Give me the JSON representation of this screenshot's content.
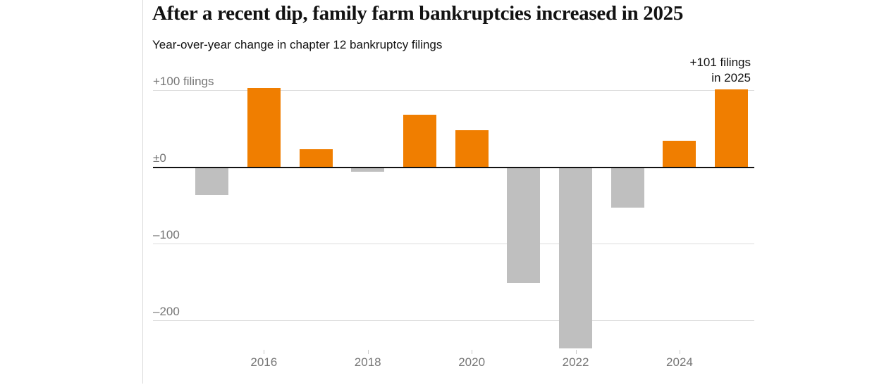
{
  "header": {
    "title": "After a recent dip, family farm bankruptcies increased in 2025",
    "subtitle": "Year-over-year change in chapter 12 bankruptcy filings"
  },
  "chart_data": {
    "type": "bar",
    "title": "After a recent dip, family farm bankruptcies increased in 2025",
    "subtitle": "Year-over-year change in chapter 12 bankruptcy filings",
    "x": [
      2015,
      2016,
      2017,
      2018,
      2019,
      2020,
      2021,
      2022,
      2023,
      2024,
      2025
    ],
    "values": [
      -36,
      103,
      23,
      -6,
      68,
      48,
      -151,
      -236,
      -53,
      34,
      101
    ],
    "x_ticks": [
      2016,
      2018,
      2020,
      2022,
      2024
    ],
    "gridlines": [
      {
        "value": 100,
        "label": "+100 filings"
      },
      {
        "value": 0,
        "label": "±0"
      },
      {
        "value": -100,
        "label": "–100"
      },
      {
        "value": -200,
        "label": "–200"
      }
    ],
    "ylim": [
      -260,
      120
    ],
    "xlabel": "",
    "ylabel": "filings (year-over-year change)",
    "grid": "horizontal",
    "legend": "none",
    "annotation": {
      "line1": "+101 filings",
      "line2": "in 2025",
      "target_year": 2025
    },
    "colors": {
      "positive": "#f07e00",
      "negative": "#bfbfbf"
    }
  }
}
